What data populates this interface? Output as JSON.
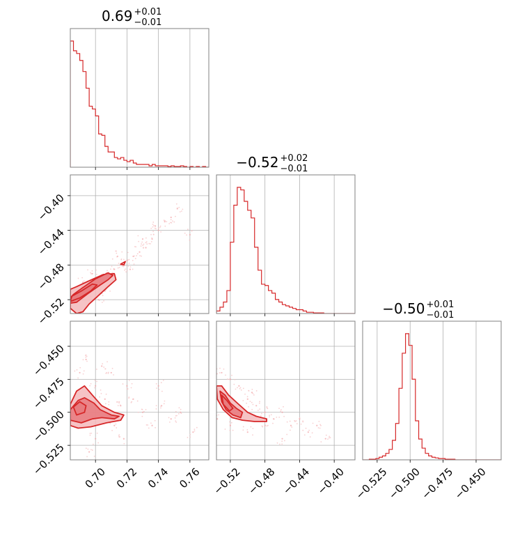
{
  "figure": {
    "type": "corner-plot",
    "color": "#d62728",
    "fill_colors": [
      "#f4b9bb",
      "#e87a7e"
    ],
    "grid": true
  },
  "titles": [
    {
      "value": "0.69",
      "plus": "+0.01",
      "minus": "−0.01"
    },
    {
      "value": "−0.52",
      "plus": "+0.02",
      "minus": "−0.01"
    },
    {
      "value": "−0.50",
      "plus": "+0.01",
      "minus": "−0.01"
    }
  ],
  "ticks": {
    "p0": [
      {
        "value": 0.7,
        "label": "0.70"
      },
      {
        "value": 0.72,
        "label": "0.72"
      },
      {
        "value": 0.74,
        "label": "0.74"
      },
      {
        "value": 0.76,
        "label": "0.76"
      }
    ],
    "p1": [
      {
        "value": -0.52,
        "label": "−0.52"
      },
      {
        "value": -0.48,
        "label": "−0.48"
      },
      {
        "value": -0.44,
        "label": "−0.44"
      },
      {
        "value": -0.4,
        "label": "−0.40"
      }
    ],
    "p2": [
      {
        "value": -0.525,
        "label": "−0.525"
      },
      {
        "value": -0.5,
        "label": "−0.500"
      },
      {
        "value": -0.475,
        "label": "−0.475"
      },
      {
        "value": -0.45,
        "label": "−0.450"
      }
    ]
  },
  "chart_data": {
    "type": "corner",
    "parameters": [
      {
        "range": [
          0.684,
          0.772
        ]
      },
      {
        "range": [
          -0.536,
          -0.376
        ]
      },
      {
        "range": [
          -0.536,
          -0.431
        ]
      }
    ],
    "histograms": [
      {
        "param": 0,
        "bin_edges": [
          0.684,
          0.686,
          0.688,
          0.69,
          0.692,
          0.694,
          0.696,
          0.698,
          0.7,
          0.702,
          0.704,
          0.706,
          0.708,
          0.71,
          0.712,
          0.714,
          0.716,
          0.718,
          0.72,
          0.722,
          0.724,
          0.726,
          0.728,
          0.73,
          0.732,
          0.734,
          0.736,
          0.738,
          0.74,
          0.742,
          0.744,
          0.746,
          0.748,
          0.75,
          0.752,
          0.754,
          0.756,
          0.758,
          0.76,
          0.762,
          0.764,
          0.766,
          0.768,
          0.77,
          0.772
        ],
        "counts": [
          0.91,
          0.84,
          0.82,
          0.77,
          0.69,
          0.57,
          0.44,
          0.42,
          0.37,
          0.24,
          0.23,
          0.15,
          0.11,
          0.11,
          0.07,
          0.06,
          0.07,
          0.05,
          0.04,
          0.05,
          0.03,
          0.02,
          0.02,
          0.02,
          0.02,
          0.01,
          0.02,
          0.01,
          0.01,
          0.01,
          0.01,
          0.005,
          0.01,
          0.005,
          0.005,
          0.01,
          0.005,
          0.0,
          0.005,
          0.0,
          0.005,
          0.0,
          0.005,
          0.0
        ]
      },
      {
        "param": 1,
        "bin_edges": [
          -0.536,
          -0.532,
          -0.528,
          -0.524,
          -0.52,
          -0.516,
          -0.512,
          -0.508,
          -0.504,
          -0.5,
          -0.496,
          -0.492,
          -0.488,
          -0.484,
          -0.48,
          -0.476,
          -0.472,
          -0.468,
          -0.464,
          -0.46,
          -0.456,
          -0.452,
          -0.448,
          -0.444,
          -0.44,
          -0.436,
          -0.432,
          -0.428,
          -0.424,
          -0.42,
          -0.416,
          -0.412,
          -0.408,
          -0.404,
          -0.4,
          -0.396,
          -0.392,
          -0.388,
          -0.384,
          -0.38,
          -0.376
        ],
        "counts": [
          0.02,
          0.05,
          0.09,
          0.18,
          0.56,
          0.85,
          0.99,
          0.97,
          0.88,
          0.81,
          0.75,
          0.52,
          0.34,
          0.23,
          0.22,
          0.18,
          0.16,
          0.11,
          0.09,
          0.07,
          0.06,
          0.05,
          0.04,
          0.03,
          0.03,
          0.02,
          0.01,
          0.01,
          0.005,
          0.005,
          0.005,
          0.0,
          0.0,
          0.0,
          0.0,
          0.0,
          0.0,
          0.0,
          0.0,
          0.0
        ]
      },
      {
        "param": 2,
        "bin_edges": [
          -0.536,
          -0.5335,
          -0.531,
          -0.5285,
          -0.526,
          -0.5235,
          -0.521,
          -0.5185,
          -0.516,
          -0.5135,
          -0.511,
          -0.5085,
          -0.506,
          -0.5035,
          -0.501,
          -0.4985,
          -0.496,
          -0.4935,
          -0.491,
          -0.4885,
          -0.486,
          -0.4835,
          -0.481,
          -0.4785,
          -0.476,
          -0.4735,
          -0.471,
          -0.4685,
          -0.466,
          -0.4635,
          -0.461,
          -0.4585,
          -0.456,
          -0.4535,
          -0.451,
          -0.4485,
          -0.446,
          -0.4435,
          -0.441,
          -0.4385,
          -0.436,
          -0.4335,
          -0.431
        ],
        "counts": [
          0.0,
          0.0,
          0.005,
          0.005,
          0.01,
          0.02,
          0.03,
          0.05,
          0.08,
          0.15,
          0.28,
          0.55,
          0.82,
          0.97,
          0.88,
          0.62,
          0.3,
          0.16,
          0.09,
          0.05,
          0.03,
          0.02,
          0.015,
          0.01,
          0.01,
          0.005,
          0.005,
          0.005,
          0.0,
          0.0,
          0.0,
          0.0,
          0.0,
          0.0,
          0.0,
          0.0,
          0.0,
          0.0,
          0.0,
          0.0,
          0.0,
          0.0
        ]
      }
    ],
    "panels_2d": [
      {
        "x": 0,
        "y": 1,
        "contours": [
          [
            [
              0.684,
              -0.524
            ],
            [
              0.688,
              -0.523
            ],
            [
              0.696,
              -0.512
            ],
            [
              0.703,
              -0.503
            ],
            [
              0.708,
              -0.497
            ],
            [
              0.711,
              -0.492
            ],
            [
              0.708,
              -0.489
            ],
            [
              0.7,
              -0.496
            ],
            [
              0.692,
              -0.506
            ],
            [
              0.686,
              -0.514
            ],
            [
              0.684,
              -0.518
            ]
          ],
          [
            [
              0.684,
              -0.53
            ],
            [
              0.688,
              -0.536
            ],
            [
              0.692,
              -0.534
            ],
            [
              0.696,
              -0.525
            ],
            [
              0.702,
              -0.515
            ],
            [
              0.708,
              -0.505
            ],
            [
              0.713,
              -0.497
            ],
            [
              0.712,
              -0.49
            ],
            [
              0.705,
              -0.491
            ],
            [
              0.695,
              -0.499
            ],
            [
              0.688,
              -0.505
            ],
            [
              0.684,
              -0.508
            ]
          ],
          [
            [
              0.684,
              -0.522
            ],
            [
              0.69,
              -0.518
            ],
            [
              0.697,
              -0.51
            ],
            [
              0.701,
              -0.503
            ],
            [
              0.698,
              -0.502
            ],
            [
              0.691,
              -0.51
            ],
            [
              0.685,
              -0.516
            ]
          ],
          [
            [
              0.716,
              -0.479
            ],
            [
              0.719,
              -0.476
            ],
            [
              0.718,
              -0.48
            ]
          ]
        ],
        "points": [
          [
            0.69,
            -0.52
          ],
          [
            0.694,
            -0.51
          ],
          [
            0.7,
            -0.5
          ],
          [
            0.704,
            -0.495
          ],
          [
            0.71,
            -0.49
          ],
          [
            0.712,
            -0.485
          ],
          [
            0.716,
            -0.48
          ],
          [
            0.72,
            -0.475
          ],
          [
            0.724,
            -0.47
          ],
          [
            0.728,
            -0.465
          ],
          [
            0.732,
            -0.46
          ],
          [
            0.736,
            -0.45
          ],
          [
            0.74,
            -0.44
          ],
          [
            0.744,
            -0.43
          ],
          [
            0.748,
            -0.425
          ],
          [
            0.752,
            -0.415
          ],
          [
            0.76,
            -0.445
          ],
          [
            0.706,
            -0.51
          ],
          [
            0.698,
            -0.49
          ],
          [
            0.714,
            -0.47
          ],
          [
            0.722,
            -0.485
          ],
          [
            0.73,
            -0.45
          ],
          [
            0.738,
            -0.435
          ],
          [
            0.702,
            -0.52
          ],
          [
            0.692,
            -0.5
          ]
        ]
      },
      {
        "x": 0,
        "y": 2,
        "contours": [
          [
            [
              0.684,
              -0.498
            ],
            [
              0.689,
              -0.491
            ],
            [
              0.693,
              -0.489
            ],
            [
              0.699,
              -0.493
            ],
            [
              0.703,
              -0.498
            ],
            [
              0.71,
              -0.502
            ],
            [
              0.715,
              -0.503
            ],
            [
              0.712,
              -0.505
            ],
            [
              0.704,
              -0.504
            ],
            [
              0.698,
              -0.505
            ],
            [
              0.691,
              -0.508
            ],
            [
              0.684,
              -0.506
            ]
          ],
          [
            [
              0.684,
              -0.494
            ],
            [
              0.688,
              -0.484
            ],
            [
              0.693,
              -0.48
            ],
            [
              0.698,
              -0.487
            ],
            [
              0.704,
              -0.495
            ],
            [
              0.712,
              -0.5
            ],
            [
              0.718,
              -0.502
            ],
            [
              0.716,
              -0.506
            ],
            [
              0.707,
              -0.508
            ],
            [
              0.697,
              -0.511
            ],
            [
              0.689,
              -0.512
            ],
            [
              0.684,
              -0.51
            ]
          ],
          [
            [
              0.686,
              -0.496
            ],
            [
              0.69,
              -0.492
            ],
            [
              0.694,
              -0.495
            ],
            [
              0.693,
              -0.5
            ],
            [
              0.688,
              -0.502
            ]
          ]
        ],
        "points": [
          [
            0.69,
            -0.47
          ],
          [
            0.694,
            -0.46
          ],
          [
            0.7,
            -0.48
          ],
          [
            0.706,
            -0.49
          ],
          [
            0.712,
            -0.51
          ],
          [
            0.718,
            -0.52
          ],
          [
            0.724,
            -0.49
          ],
          [
            0.73,
            -0.5
          ],
          [
            0.736,
            -0.51
          ],
          [
            0.742,
            -0.495
          ],
          [
            0.748,
            -0.505
          ],
          [
            0.754,
            -0.5
          ],
          [
            0.762,
            -0.515
          ],
          [
            0.7,
            -0.52
          ],
          [
            0.71,
            -0.47
          ],
          [
            0.72,
            -0.48
          ],
          [
            0.696,
            -0.53
          ],
          [
            0.74,
            -0.48
          ],
          [
            0.704,
            -0.465
          ],
          [
            0.716,
            -0.495
          ]
        ]
      },
      {
        "x": 1,
        "y": 2,
        "contours": [
          [
            [
              -0.532,
              -0.484
            ],
            [
              -0.526,
              -0.487
            ],
            [
              -0.52,
              -0.493
            ],
            [
              -0.513,
              -0.497
            ],
            [
              -0.506,
              -0.5
            ],
            [
              -0.508,
              -0.504
            ],
            [
              -0.517,
              -0.502
            ],
            [
              -0.525,
              -0.498
            ],
            [
              -0.53,
              -0.492
            ]
          ],
          [
            [
              -0.536,
              -0.48
            ],
            [
              -0.53,
              -0.48
            ],
            [
              -0.522,
              -0.487
            ],
            [
              -0.512,
              -0.493
            ],
            [
              -0.5,
              -0.5
            ],
            [
              -0.49,
              -0.503
            ],
            [
              -0.478,
              -0.505
            ],
            [
              -0.478,
              -0.507
            ],
            [
              -0.492,
              -0.507
            ],
            [
              -0.506,
              -0.506
            ],
            [
              -0.518,
              -0.504
            ],
            [
              -0.528,
              -0.498
            ],
            [
              -0.535,
              -0.49
            ]
          ],
          [
            [
              -0.53,
              -0.487
            ],
            [
              -0.524,
              -0.491
            ],
            [
              -0.517,
              -0.497
            ],
            [
              -0.521,
              -0.499
            ],
            [
              -0.528,
              -0.494
            ]
          ]
        ],
        "points": [
          [
            -0.53,
            -0.47
          ],
          [
            -0.52,
            -0.475
          ],
          [
            -0.51,
            -0.48
          ],
          [
            -0.5,
            -0.49
          ],
          [
            -0.49,
            -0.495
          ],
          [
            -0.48,
            -0.5
          ],
          [
            -0.47,
            -0.505
          ],
          [
            -0.46,
            -0.5
          ],
          [
            -0.45,
            -0.51
          ],
          [
            -0.44,
            -0.505
          ],
          [
            -0.43,
            -0.515
          ],
          [
            -0.42,
            -0.51
          ],
          [
            -0.41,
            -0.52
          ],
          [
            -0.52,
            -0.51
          ],
          [
            -0.5,
            -0.515
          ],
          [
            -0.48,
            -0.51
          ],
          [
            -0.535,
            -0.505
          ],
          [
            -0.46,
            -0.52
          ],
          [
            -0.495,
            -0.485
          ],
          [
            -0.505,
            -0.5
          ]
        ]
      }
    ]
  }
}
